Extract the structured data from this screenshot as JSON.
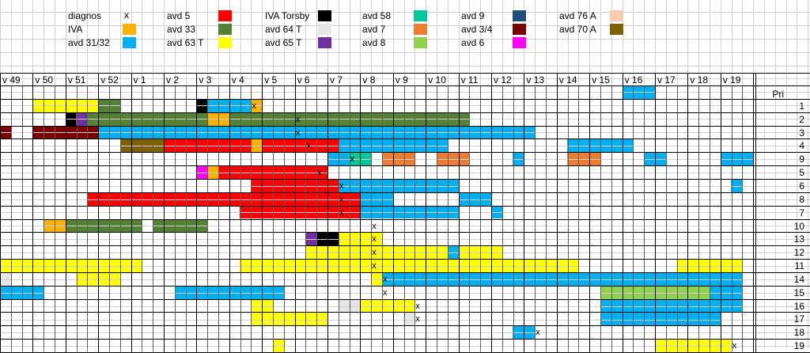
{
  "chart_data": {
    "type": "table",
    "title": "",
    "legend": [
      {
        "name": "diagnos",
        "symbol": "x",
        "color": ""
      },
      {
        "name": "IVA",
        "color": "#f9b200"
      },
      {
        "name": "avd 31/32",
        "color": "#00b0f0"
      },
      {
        "name": "avd 5",
        "color": "#ff0000"
      },
      {
        "name": "avd 33",
        "color": "#548235"
      },
      {
        "name": "avd 63 T",
        "color": "#ffff00"
      },
      {
        "name": "IVA Torsby",
        "color": "#000000"
      },
      {
        "name": "avd 64 T",
        "color": "#e7e6e6"
      },
      {
        "name": "avd 65 T",
        "color": "#7030a0"
      },
      {
        "name": "avd 58",
        "color": "#00c896"
      },
      {
        "name": "avd 7",
        "color": "#ed7d31"
      },
      {
        "name": "avd 8",
        "color": "#92d050"
      },
      {
        "name": "avd 9",
        "color": "#1f4e79"
      },
      {
        "name": "avd 3/4",
        "color": "#7b0000"
      },
      {
        "name": "avd 6",
        "color": "#ff00ff"
      },
      {
        "name": "avd 76 A",
        "color": "#f8cbad"
      },
      {
        "name": "avd 70 A",
        "color": "#7f6000"
      }
    ],
    "weeks": [
      "v 49",
      "v 50",
      "v 51",
      "v 52",
      "v 1",
      "v 2",
      "v 3",
      "v 4",
      "v 5",
      "v 6",
      "v 7",
      "v 8",
      "v 9",
      "v 10",
      "v 11",
      "v 12",
      "v 13",
      "v 14",
      "v 15",
      "v 16",
      "v 17",
      "v 18",
      "v 19"
    ],
    "pri_header": "Pri",
    "rows": [
      {
        "pri": "",
        "segments": [
          {
            "from": 19,
            "to": 20,
            "unit": "avd 31/32"
          }
        ],
        "diag": null
      },
      {
        "pri": "1",
        "segments": [
          {
            "from": 1,
            "to": 3,
            "unit": "avd 63 T"
          },
          {
            "from": 3,
            "to": 3.66,
            "unit": "avd 33"
          },
          {
            "from": 6,
            "to": 6.33,
            "unit": "IVA Torsby"
          },
          {
            "from": 6.33,
            "to": 7.66,
            "unit": "avd 31/32"
          },
          {
            "from": 7.66,
            "to": 8,
            "unit": "IVA"
          }
        ],
        "diag": 7.66
      },
      {
        "pri": "2",
        "segments": [
          {
            "from": 2,
            "to": 2.33,
            "unit": "IVA Torsby"
          },
          {
            "from": 2.33,
            "to": 2.66,
            "unit": "avd 65 T"
          },
          {
            "from": 2.66,
            "to": 6.33,
            "unit": "avd 33"
          },
          {
            "from": 6.33,
            "to": 7,
            "unit": "IVA"
          },
          {
            "from": 7,
            "to": 14.33,
            "unit": "avd 33"
          }
        ],
        "diag": 9
      },
      {
        "pri": "3",
        "segments": [
          {
            "from": 0,
            "to": 0.33,
            "unit": "avd 3/4"
          },
          {
            "from": 1,
            "to": 3,
            "unit": "avd 3/4"
          },
          {
            "from": 3,
            "to": 16.33,
            "unit": "avd 31/32"
          }
        ],
        "diag": 9
      },
      {
        "pri": "4",
        "segments": [
          {
            "from": 3.66,
            "to": 5,
            "unit": "avd 70 A"
          },
          {
            "from": 5,
            "to": 7.66,
            "unit": "avd 5"
          },
          {
            "from": 7.66,
            "to": 8,
            "unit": "IVA"
          },
          {
            "from": 8,
            "to": 10.33,
            "unit": "avd 5"
          },
          {
            "from": 10.33,
            "to": 13.66,
            "unit": "avd 31/32"
          },
          {
            "from": 17.33,
            "to": 19.33,
            "unit": "avd 31/32"
          }
        ],
        "diag": 9.33
      },
      {
        "pri": "9",
        "segments": [
          {
            "from": 10,
            "to": 10.66,
            "unit": "avd 31/32"
          },
          {
            "from": 10.66,
            "to": 11.33,
            "unit": "avd 58"
          },
          {
            "from": 11.66,
            "to": 12.66,
            "unit": "avd 7"
          },
          {
            "from": 13.33,
            "to": 14.33,
            "unit": "avd 7"
          },
          {
            "from": 15.66,
            "to": 16,
            "unit": "avd 31/32"
          },
          {
            "from": 17.33,
            "to": 18.33,
            "unit": "avd 7"
          },
          {
            "from": 19.66,
            "to": 20.33,
            "unit": "avd 31/32"
          },
          {
            "from": 22,
            "to": 23,
            "unit": "avd 31/32"
          }
        ],
        "diag": 10.66
      },
      {
        "pri": "5",
        "segments": [
          {
            "from": 6,
            "to": 6.33,
            "unit": "avd 6"
          },
          {
            "from": 6.33,
            "to": 6.66,
            "unit": "IVA"
          },
          {
            "from": 6.66,
            "to": 10,
            "unit": "avd 5"
          }
        ],
        "diag": 9.66
      },
      {
        "pri": "6",
        "segments": [
          {
            "from": 7.66,
            "to": 10.33,
            "unit": "avd 5"
          },
          {
            "from": 10.33,
            "to": 14,
            "unit": "avd 31/32"
          },
          {
            "from": 22.33,
            "to": 22.66,
            "unit": "avd 31/32"
          }
        ],
        "diag": 10.33
      },
      {
        "pri": "8",
        "segments": [
          {
            "from": 2.66,
            "to": 11,
            "unit": "avd 5"
          },
          {
            "from": 11,
            "to": 12,
            "unit": "avd 31/32"
          },
          {
            "from": 14,
            "to": 15,
            "unit": "avd 31/32"
          }
        ],
        "diag": 10.33
      },
      {
        "pri": "7",
        "segments": [
          {
            "from": 7.33,
            "to": 11,
            "unit": "avd 5"
          },
          {
            "from": 11,
            "to": 14,
            "unit": "avd 31/32"
          },
          {
            "from": 15,
            "to": 15.33,
            "unit": "avd 31/32"
          }
        ],
        "diag": 10.33
      },
      {
        "pri": "10",
        "segments": [
          {
            "from": 1.33,
            "to": 2,
            "unit": "IVA"
          },
          {
            "from": 2,
            "to": 4.33,
            "unit": "avd 33"
          },
          {
            "from": 4.66,
            "to": 6.33,
            "unit": "avd 33"
          }
        ],
        "diag": 11.33
      },
      {
        "pri": "13",
        "segments": [
          {
            "from": 9.33,
            "to": 9.66,
            "unit": "avd 65 T"
          },
          {
            "from": 9.66,
            "to": 10.33,
            "unit": "IVA Torsby"
          },
          {
            "from": 10.33,
            "to": 11.66,
            "unit": "avd 63 T"
          }
        ],
        "diag": 11.33
      },
      {
        "pri": "12",
        "segments": [
          {
            "from": 9.33,
            "to": 13.66,
            "unit": "avd 63 T"
          },
          {
            "from": 13.66,
            "to": 14,
            "unit": "avd 31/32"
          },
          {
            "from": 14,
            "to": 15.33,
            "unit": "avd 63 T"
          }
        ],
        "diag": 11.33
      },
      {
        "pri": "11",
        "segments": [
          {
            "from": 0,
            "to": 4.33,
            "unit": "avd 63 T"
          },
          {
            "from": 7.33,
            "to": 17.66,
            "unit": "avd 63 T"
          },
          {
            "from": 20.66,
            "to": 22.66,
            "unit": "avd 63 T"
          }
        ],
        "diag": 11.33
      },
      {
        "pri": "14",
        "segments": [
          {
            "from": 0,
            "to": 0.33,
            "unit": "avd 64 T"
          },
          {
            "from": 2.33,
            "to": 3.66,
            "unit": "avd 63 T"
          },
          {
            "from": 11.33,
            "to": 11.66,
            "unit": "avd 63 T"
          },
          {
            "from": 11.66,
            "to": 22.66,
            "unit": "avd 31/32"
          }
        ],
        "diag": 11.66
      },
      {
        "pri": "15",
        "segments": [
          {
            "from": 0,
            "to": 1.33,
            "unit": "avd 31/32"
          },
          {
            "from": 5.33,
            "to": 8.66,
            "unit": "avd 31/32"
          },
          {
            "from": 18.33,
            "to": 21.66,
            "unit": "avd 8"
          },
          {
            "from": 21.66,
            "to": 22.66,
            "unit": "avd 31/32"
          }
        ],
        "diag": 11.66
      },
      {
        "pri": "16",
        "segments": [
          {
            "from": 7.66,
            "to": 8.33,
            "unit": "avd 63 T"
          },
          {
            "from": 10.33,
            "to": 11,
            "unit": "avd 64 T"
          },
          {
            "from": 11,
            "to": 12.66,
            "unit": "avd 63 T"
          },
          {
            "from": 18.33,
            "to": 22.66,
            "unit": "avd 31/32"
          }
        ],
        "diag": 12.66
      },
      {
        "pri": "17",
        "segments": [
          {
            "from": 7.66,
            "to": 10,
            "unit": "avd 63 T"
          },
          {
            "from": 12.33,
            "to": 12.66,
            "unit": "avd 64 T"
          },
          {
            "from": 18.33,
            "to": 22,
            "unit": "avd 31/32"
          }
        ],
        "diag": 12.66
      },
      {
        "pri": "18",
        "segments": [
          {
            "from": 15.66,
            "to": 16.33,
            "unit": "avd 31/32"
          }
        ],
        "diag": 16.33
      },
      {
        "pri": "19",
        "segments": [
          {
            "from": 8.33,
            "to": 8.66,
            "unit": "avd 63 T"
          },
          {
            "from": 20,
            "to": 22.33,
            "unit": "avd 63 T"
          }
        ],
        "diag": 22.33
      }
    ]
  }
}
